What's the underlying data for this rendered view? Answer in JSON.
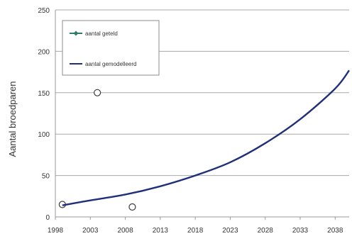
{
  "chart_data": {
    "type": "line",
    "ylabel": "Aantal broedparen",
    "xlabel": "",
    "xlim": [
      1998,
      2040
    ],
    "ylim": [
      0,
      250
    ],
    "x_ticks": [
      1998,
      2003,
      2008,
      2013,
      2018,
      2023,
      2028,
      2033,
      2038
    ],
    "y_ticks": [
      0,
      50,
      100,
      150,
      200,
      250
    ],
    "grid": "horizontal",
    "legend_position": "top-left",
    "series": [
      {
        "name": "aantal geteld",
        "kind": "scatter",
        "color": "#2e7d6b",
        "x": [
          1999,
          2004,
          2009
        ],
        "y": [
          15,
          150,
          12
        ]
      },
      {
        "name": "aantal gemodelleerd",
        "kind": "line",
        "color": "#1f2f7a",
        "x": [
          1999,
          2003,
          2008,
          2013,
          2018,
          2023,
          2028,
          2033,
          2038,
          2040
        ],
        "y": [
          14,
          20,
          27,
          37,
          50,
          66,
          89,
          118,
          155,
          177
        ]
      }
    ]
  }
}
